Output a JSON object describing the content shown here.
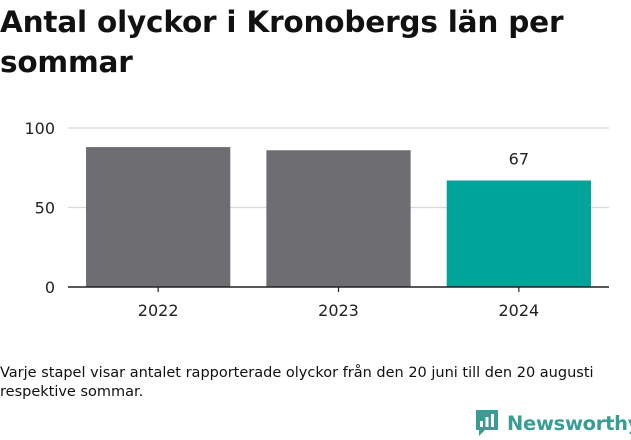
{
  "title": "Antal olyckor i Kronobergs län per sommar",
  "note": "Varje stapel visar antalet rapporterade olyckor från den 20 juni till den 20 augusti respektive sommar.",
  "brand": {
    "name": "Newsworthy",
    "icon": "bar-chart-logo-icon",
    "color": "#3a9d94"
  },
  "chart_data": {
    "type": "bar",
    "title": "Antal olyckor i Kronobergs län per sommar",
    "xlabel": "",
    "ylabel": "",
    "categories": [
      "2022",
      "2023",
      "2024"
    ],
    "values": [
      88,
      86,
      67
    ],
    "colors": [
      "#6e6d72",
      "#6e6d72",
      "#00a499"
    ],
    "data_labels": [
      "",
      "",
      "67"
    ],
    "ylim": [
      0,
      100
    ],
    "yticks": [
      0,
      50,
      100
    ],
    "grid": true,
    "legend": "none"
  }
}
